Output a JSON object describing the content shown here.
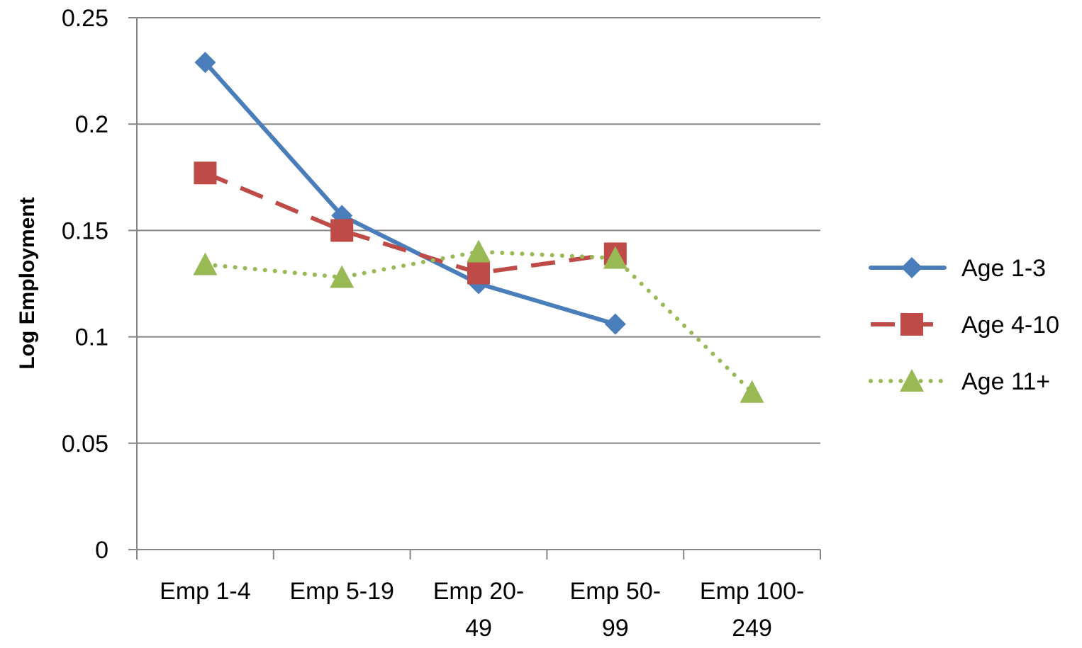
{
  "chart_data": {
    "type": "line",
    "title": "",
    "xlabel": "",
    "ylabel": "Log Employment",
    "categories": [
      [
        "Emp 1-4"
      ],
      [
        "Emp 5-19"
      ],
      [
        "Emp 20-",
        "49"
      ],
      [
        "Emp 50-",
        "99"
      ],
      [
        "Emp 100-",
        "249"
      ]
    ],
    "ylim": [
      0,
      0.25
    ],
    "yticks": [
      "0",
      "0.05",
      "0.1",
      "0.15",
      "0.2",
      "0.25"
    ],
    "grid": true,
    "legend_position": "right",
    "series": [
      {
        "name": "Age 1-3",
        "values": [
          0.229,
          0.157,
          0.125,
          0.106,
          null
        ],
        "color": "#4a7ebb",
        "marker": "diamond",
        "dash": "solid"
      },
      {
        "name": "Age 4-10",
        "values": [
          0.177,
          0.15,
          0.13,
          0.139,
          null
        ],
        "color": "#be4b48",
        "marker": "square",
        "dash": "dash"
      },
      {
        "name": "Age 11+",
        "values": [
          0.134,
          0.128,
          0.14,
          0.137,
          0.074
        ],
        "color": "#98b954",
        "marker": "triangle",
        "dash": "dot"
      }
    ]
  }
}
